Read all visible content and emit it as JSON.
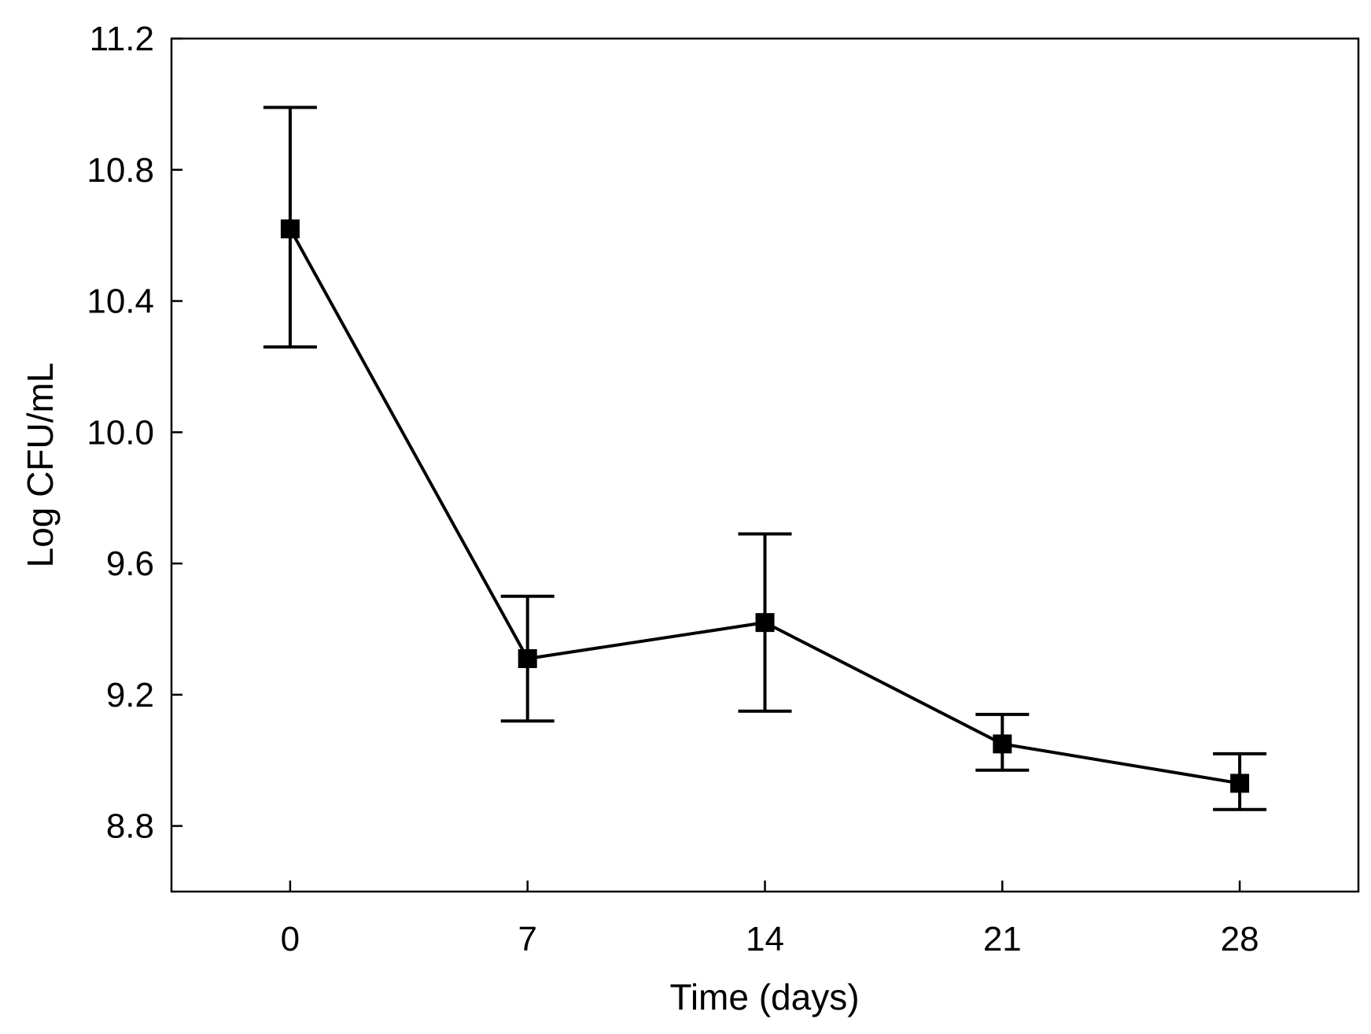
{
  "chart_data": {
    "type": "line",
    "title": "",
    "xlabel": "Time (days)",
    "ylabel": "Log CFU/mL",
    "x": [
      0,
      7,
      14,
      21,
      28
    ],
    "xticks": [
      "0",
      "7",
      "14",
      "21",
      "28"
    ],
    "xlim": [
      -3.5,
      31.5
    ],
    "yticks": [
      "8.8",
      "9.2",
      "9.6",
      "10.0",
      "10.4",
      "10.8",
      "11.2"
    ],
    "ylim": [
      8.6,
      11.2
    ],
    "grid": false,
    "legend": "none",
    "series": [
      {
        "name": "Log CFU/mL",
        "marker": "square",
        "color": "#000000",
        "values": [
          10.62,
          9.31,
          9.42,
          9.05,
          8.93
        ],
        "error_low": [
          10.26,
          9.12,
          9.15,
          8.97,
          8.85
        ],
        "error_high": [
          10.99,
          9.5,
          9.69,
          9.14,
          9.02
        ]
      }
    ]
  }
}
